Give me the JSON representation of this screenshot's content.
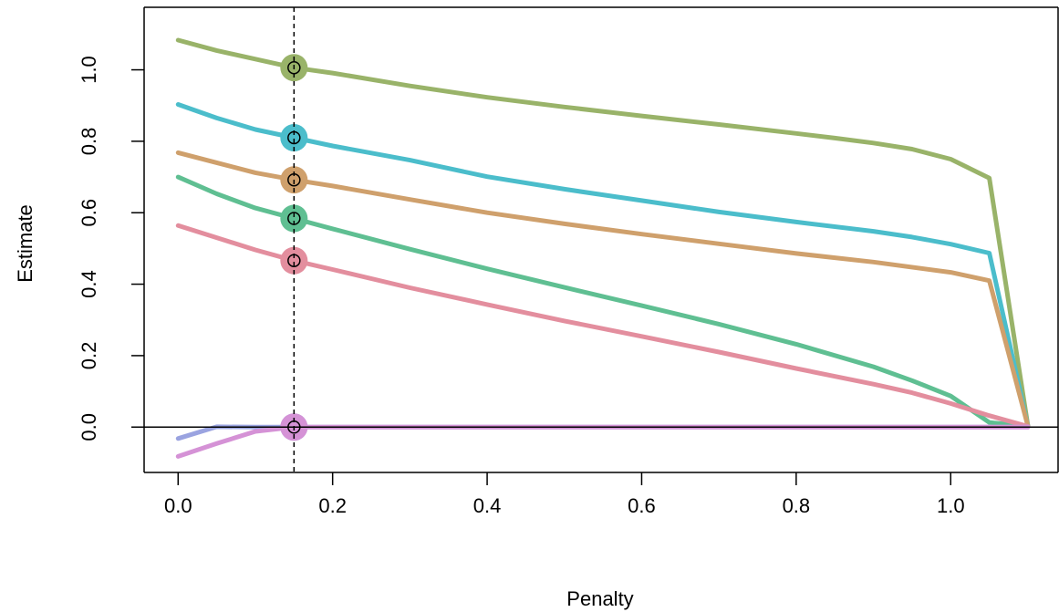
{
  "chart_data": {
    "type": "line",
    "xlabel": "Penalty",
    "ylabel": "Estimate",
    "xlim": [
      -0.044,
      1.139
    ],
    "ylim": [
      -0.127,
      1.175
    ],
    "x_ticks": [
      0.0,
      0.2,
      0.4,
      0.6,
      0.8,
      1.0
    ],
    "x_tick_labels": [
      "0.0",
      "0.2",
      "0.4",
      "0.6",
      "0.8",
      "1.0"
    ],
    "y_ticks": [
      0.0,
      0.2,
      0.4,
      0.6,
      0.8,
      1.0
    ],
    "y_tick_labels": [
      "0.0",
      "0.2",
      "0.4",
      "0.6",
      "0.8",
      "1.0"
    ],
    "grid": false,
    "legend": "none",
    "reference_hline": 0.0,
    "selected_penalty": 0.15,
    "series": [
      {
        "color": "#99b369",
        "x": [
          0.0,
          0.05,
          0.1,
          0.15,
          0.2,
          0.3,
          0.4,
          0.5,
          0.6,
          0.7,
          0.8,
          0.85,
          0.9,
          0.95,
          1.0,
          1.05,
          1.1
        ],
        "values": [
          1.083,
          1.054,
          1.03,
          1.006,
          0.991,
          0.955,
          0.923,
          0.896,
          0.871,
          0.847,
          0.822,
          0.809,
          0.795,
          0.778,
          0.75,
          0.697,
          0.002
        ],
        "selected": 1.006
      },
      {
        "color": "#4bbdcb",
        "x": [
          0.0,
          0.05,
          0.1,
          0.15,
          0.2,
          0.3,
          0.4,
          0.5,
          0.6,
          0.7,
          0.8,
          0.9,
          0.95,
          1.0,
          1.05,
          1.1
        ],
        "values": [
          0.903,
          0.865,
          0.833,
          0.81,
          0.787,
          0.747,
          0.701,
          0.666,
          0.634,
          0.602,
          0.574,
          0.548,
          0.532,
          0.512,
          0.487,
          0.002
        ],
        "selected": 0.81
      },
      {
        "color": "#cfa06c",
        "x": [
          0.0,
          0.05,
          0.1,
          0.15,
          0.2,
          0.3,
          0.4,
          0.5,
          0.6,
          0.7,
          0.8,
          0.9,
          1.0,
          1.05,
          1.1
        ],
        "values": [
          0.768,
          0.74,
          0.712,
          0.692,
          0.675,
          0.637,
          0.6,
          0.569,
          0.54,
          0.513,
          0.486,
          0.462,
          0.433,
          0.41,
          0.002
        ],
        "selected": 0.692
      },
      {
        "color": "#5fbf92",
        "x": [
          0.0,
          0.05,
          0.1,
          0.15,
          0.2,
          0.3,
          0.4,
          0.5,
          0.6,
          0.7,
          0.8,
          0.9,
          0.95,
          1.0,
          1.05,
          1.1
        ],
        "values": [
          0.7,
          0.653,
          0.613,
          0.584,
          0.555,
          0.498,
          0.443,
          0.391,
          0.34,
          0.288,
          0.232,
          0.169,
          0.13,
          0.087,
          0.013,
          0.002
        ],
        "selected": 0.584
      },
      {
        "color": "#e38e9e",
        "x": [
          0.0,
          0.05,
          0.1,
          0.15,
          0.2,
          0.3,
          0.4,
          0.5,
          0.6,
          0.7,
          0.8,
          0.9,
          0.95,
          1.0,
          1.05,
          1.1
        ],
        "values": [
          0.564,
          0.53,
          0.496,
          0.466,
          0.441,
          0.39,
          0.343,
          0.297,
          0.254,
          0.21,
          0.164,
          0.12,
          0.096,
          0.066,
          0.032,
          0.002
        ],
        "selected": 0.466
      },
      {
        "color": "#9aa3e0",
        "x": [
          0.0,
          0.05,
          0.1,
          0.15,
          0.6,
          1.1
        ],
        "values": [
          -0.032,
          0.001,
          0.0,
          0.0,
          0.0,
          0.0
        ],
        "selected": 0.0
      },
      {
        "color": "#d592d6",
        "x": [
          0.0,
          0.05,
          0.1,
          0.15,
          0.6,
          1.1
        ],
        "values": [
          -0.082,
          -0.046,
          -0.012,
          0.0,
          0.0,
          0.0
        ],
        "selected": 0.0
      }
    ]
  }
}
